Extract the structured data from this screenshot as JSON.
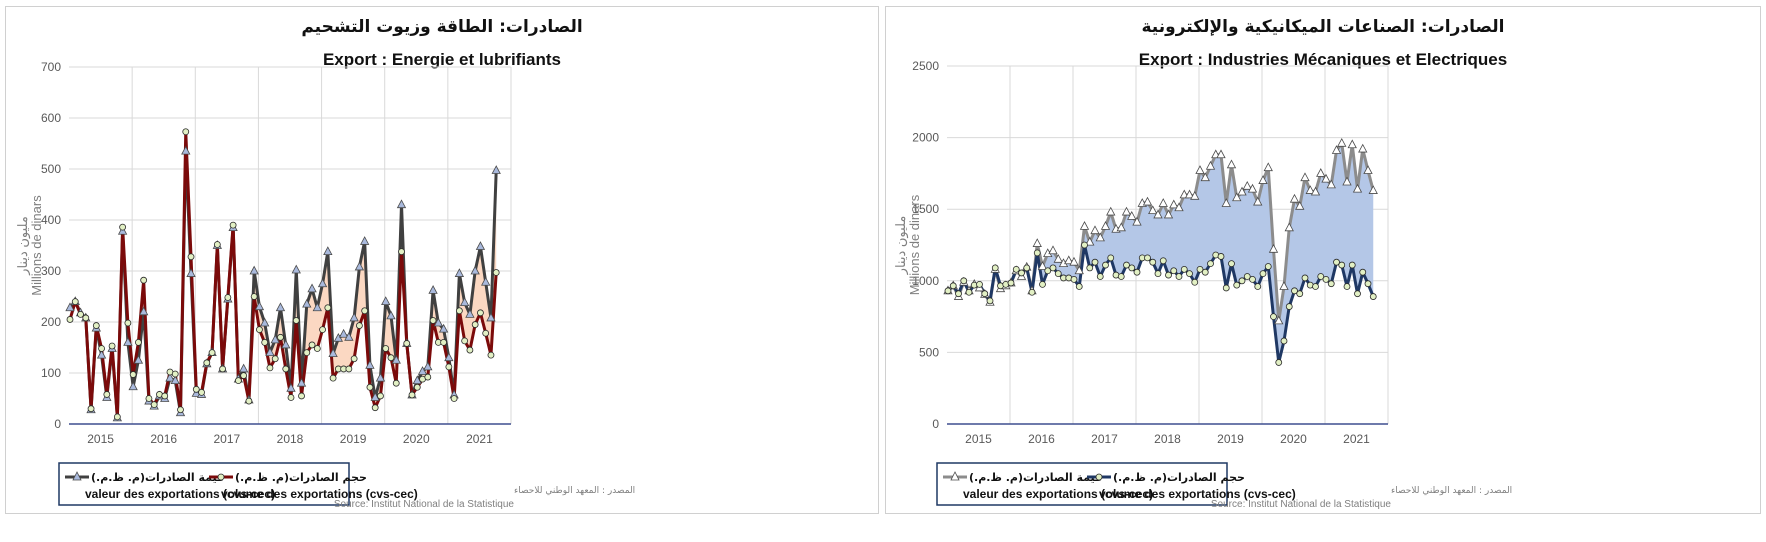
{
  "chart_data": [
    {
      "type": "line",
      "title_ar": "الصادرات: الطاقة وزيوت التشحيم",
      "title": "Export :  Energie et lubrifiants",
      "ylabel_ar": "مليون دينار",
      "ylabel": "Millions de dinars",
      "ylim": [
        0,
        700
      ],
      "yticks": [
        0,
        100,
        200,
        300,
        400,
        500,
        600,
        700
      ],
      "xticks": [
        "2015",
        "2016",
        "2017",
        "2018",
        "2019",
        "2020",
        "2021"
      ],
      "x_start": "2015-01",
      "frequency": "monthly",
      "grid": true,
      "fill_between_from_index": 35,
      "colors": {
        "value_line": "#404040",
        "value_marker": "#a9b9dc",
        "volume_line": "#7b0a0a",
        "volume_marker": "#e2f0c4",
        "fill": "#fbd8c2"
      },
      "series": [
        {
          "name": "valeur des exportations (cvs-cec)",
          "name_ar": "قيمة  الصادرات(م. ظ.م.)",
          "marker": "triangle",
          "values": [
            228,
            240,
            218,
            208,
            28,
            188,
            135,
            52,
            148,
            12,
            378,
            160,
            73,
            125,
            220,
            45,
            35,
            55,
            50,
            90,
            85,
            22,
            535,
            295,
            60,
            58,
            118,
            140,
            350,
            108,
            245,
            385,
            88,
            108,
            47,
            300,
            230,
            198,
            140,
            165,
            228,
            155,
            70,
            302,
            80,
            235,
            265,
            228,
            275,
            338,
            138,
            168,
            176,
            170,
            208,
            308,
            358,
            115,
            52,
            90,
            240,
            212,
            125,
            430,
            158,
            57,
            85,
            103,
            112,
            262,
            198,
            186,
            130,
            57,
            295,
            238,
            215,
            300,
            348,
            278,
            208,
            497
          ]
        },
        {
          "name": "volume des exportations (cvs-cec)",
          "name_ar": "حجم  الصادرات(م. ظ.م.)",
          "marker": "circle",
          "values": [
            205,
            240,
            215,
            208,
            30,
            193,
            148,
            58,
            153,
            14,
            386,
            198,
            97,
            160,
            282,
            50,
            38,
            58,
            55,
            102,
            98,
            28,
            573,
            328,
            68,
            62,
            120,
            140,
            352,
            108,
            248,
            390,
            85,
            95,
            45,
            250,
            185,
            160,
            110,
            128,
            170,
            108,
            52,
            203,
            55,
            140,
            155,
            148,
            185,
            228,
            90,
            108,
            108,
            108,
            128,
            193,
            222,
            72,
            32,
            55,
            148,
            130,
            80,
            338,
            158,
            57,
            72,
            88,
            92,
            203,
            160,
            160,
            112,
            50,
            222,
            163,
            145,
            195,
            218,
            178,
            135,
            297
          ]
        }
      ],
      "legend_placement": "bottom",
      "source_ar": "المصدر : المعهد الوطني للاحصاء",
      "source": "Source: Institut National de la Statistique"
    },
    {
      "type": "line",
      "title_ar": "الصادرات:  الصناعات الميكانيكية والإلكترونية",
      "title": "Export :  Industries Mécaniques et Electriques",
      "ylabel_ar": "مليون دينار",
      "ylabel": "Millions de dinars",
      "ylim": [
        0,
        2500
      ],
      "yticks": [
        0,
        500,
        1000,
        1500,
        2000,
        2500
      ],
      "xticks": [
        "2015",
        "2016",
        "2017",
        "2018",
        "2019",
        "2020",
        "2021"
      ],
      "x_start": "2015-01",
      "frequency": "monthly",
      "grid": true,
      "fill_between_from_index": 16,
      "colors": {
        "value_line": "#8c8c8c",
        "value_marker": "#ffffff",
        "volume_line": "#1f3864",
        "volume_marker": "#e2f0c4",
        "fill": "#b4c7e7"
      },
      "series": [
        {
          "name": "valeur des exportations (cvs-cec)",
          "name_ar": "قيمة  الصادرات(م. ظ.م.)",
          "marker": "triangle",
          "values": [
            930,
            965,
            890,
            990,
            930,
            975,
            950,
            905,
            850,
            1080,
            945,
            965,
            985,
            1070,
            1030,
            1095,
            930,
            1260,
            1100,
            1190,
            1210,
            1150,
            1120,
            1140,
            1130,
            1070,
            1380,
            1270,
            1350,
            1300,
            1380,
            1480,
            1360,
            1370,
            1480,
            1450,
            1410,
            1540,
            1550,
            1490,
            1460,
            1540,
            1460,
            1530,
            1510,
            1600,
            1600,
            1590,
            1770,
            1720,
            1800,
            1880,
            1880,
            1540,
            1810,
            1580,
            1620,
            1660,
            1640,
            1550,
            1700,
            1790,
            1220,
            720,
            960,
            1370,
            1570,
            1520,
            1720,
            1630,
            1620,
            1750,
            1710,
            1670,
            1910,
            1960,
            1690,
            1950,
            1640,
            1920,
            1770,
            1630
          ]
        },
        {
          "name": "volume des exportations (cvs-cec)",
          "name_ar": "حجم  الصادرات(م. ظ.م.)",
          "marker": "circle",
          "values": [
            930,
            965,
            910,
            1000,
            920,
            970,
            975,
            910,
            860,
            1090,
            965,
            975,
            985,
            1080,
            1055,
            1090,
            920,
            1195,
            975,
            1070,
            1090,
            1050,
            1020,
            1020,
            1010,
            960,
            1250,
            1090,
            1130,
            1030,
            1110,
            1160,
            1040,
            1030,
            1110,
            1090,
            1060,
            1160,
            1160,
            1130,
            1050,
            1140,
            1040,
            1070,
            1030,
            1080,
            1050,
            990,
            1080,
            1060,
            1120,
            1180,
            1170,
            950,
            1120,
            970,
            1000,
            1030,
            1010,
            960,
            1050,
            1100,
            750,
            430,
            580,
            820,
            930,
            910,
            1020,
            970,
            960,
            1030,
            1010,
            980,
            1130,
            1110,
            960,
            1110,
            910,
            1060,
            980,
            890
          ]
        }
      ],
      "legend_placement": "bottom",
      "source_ar": "المصدر : المعهد الوطني للاحصاء",
      "source": "Source: Institut National de la Statistique"
    }
  ]
}
